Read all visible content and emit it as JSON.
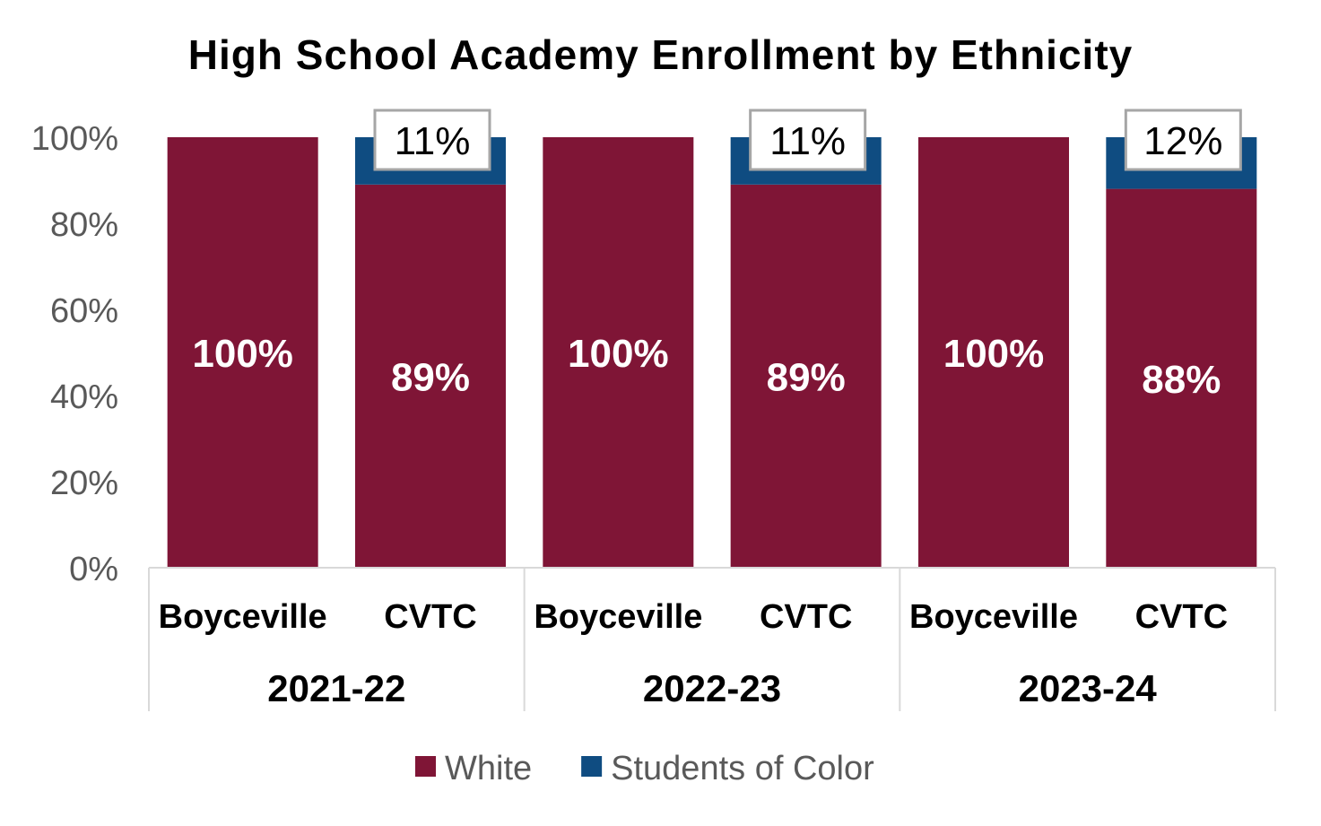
{
  "chart_data": {
    "type": "bar",
    "stacked": true,
    "percent_stacked": true,
    "title": "High School Academy Enrollment by Ethnicity",
    "xlabel": "",
    "ylabel": "",
    "ylim": [
      0,
      100
    ],
    "y_ticks": [
      "0%",
      "20%",
      "40%",
      "60%",
      "80%",
      "100%"
    ],
    "groups": [
      "2021-22",
      "2022-23",
      "2023-24"
    ],
    "categories": [
      "Boyceville",
      "CVTC",
      "Boyceville",
      "CVTC",
      "Boyceville",
      "CVTC"
    ],
    "series": [
      {
        "name": "White",
        "color": "#7F1536",
        "values": [
          100,
          89,
          100,
          89,
          100,
          88
        ],
        "labels": [
          "100%",
          "89%",
          "100%",
          "89%",
          "100%",
          "88%"
        ]
      },
      {
        "name": "Students of Color",
        "color": "#0F4C81",
        "values": [
          0,
          11,
          0,
          11,
          0,
          12
        ],
        "labels": [
          "",
          "11%",
          "",
          "11%",
          "",
          "12%"
        ]
      }
    ],
    "grid": false,
    "legend_position": "bottom"
  }
}
